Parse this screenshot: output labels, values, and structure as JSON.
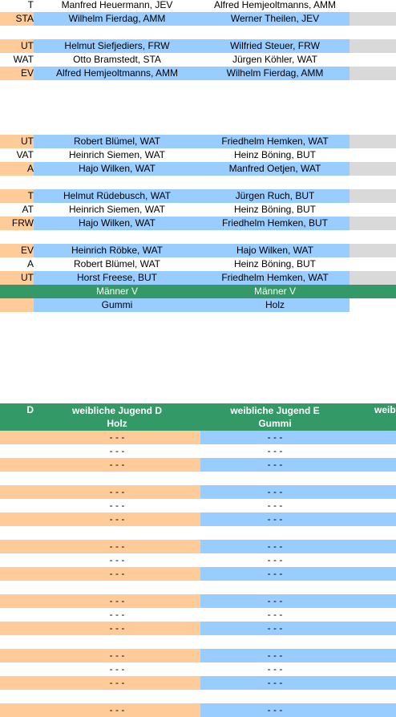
{
  "top_rows": [
    {
      "kind": "plain",
      "a": "T",
      "b": "Manfred Heuermann, JEV",
      "c": "Alfred Hemjeoltmanns, AMM"
    },
    {
      "kind": "shaded",
      "a": "STA",
      "b": "Wilhelm Fierdag, AMM",
      "c": "Werner Theilen, JEV"
    },
    null,
    {
      "kind": "shaded",
      "a": "UT",
      "b": "Helmut Siefjediers, FRW",
      "c": "Wilfried Steuer, FRW"
    },
    {
      "kind": "plain",
      "a": "WAT",
      "b": "Otto Bramstedt, STA",
      "c": "Jürgen Köhler, WAT"
    },
    {
      "kind": "shaded",
      "a": "EV",
      "b": "Alfred Hemjeoltmanns, AMM",
      "c": "Wilhelm Fierdag, AMM"
    },
    null,
    null,
    null,
    null,
    {
      "kind": "shaded",
      "a": "UT",
      "b": "Robert Blümel, WAT",
      "c": "Friedhelm Hemken, WAT"
    },
    {
      "kind": "plain",
      "a": "VAT",
      "b": "Heinrich Siemen, WAT",
      "c": "Heinz Böning, BUT"
    },
    {
      "kind": "shaded",
      "a": "A",
      "b": "Hajo Wilken, WAT",
      "c": "Manfred Oetjen, WAT"
    },
    null,
    {
      "kind": "shaded",
      "a": "T",
      "b": "Helmut Rüdebusch, WAT",
      "c": "Jürgen Ruch, BUT"
    },
    {
      "kind": "plain",
      "a": "AT",
      "b": "Heinrich Siemen, WAT",
      "c": "Heinz Böning, BUT"
    },
    {
      "kind": "shaded",
      "a": "FRW",
      "b": "Hajo Wilken, WAT",
      "c": "Friedhelm Hemken, BUT"
    },
    null,
    {
      "kind": "shaded",
      "a": "EV",
      "b": "Heinrich Röbke, WAT",
      "c": "Hajo Wilken, WAT"
    },
    {
      "kind": "plain",
      "a": "A",
      "b": "Robert Blümel, WAT",
      "c": "Heinz Böning, BUT"
    },
    {
      "kind": "shaded",
      "a": "UT",
      "b": "Horst Freese, BUT",
      "c": "Friedhelm Hemken, WAT"
    },
    {
      "kind": "header",
      "b": "Männer V",
      "c": "Männer V"
    },
    {
      "kind": "material",
      "b": "Gummi",
      "c": "Holz"
    }
  ],
  "bottom_header": {
    "a": "D",
    "b": [
      "weibliche Jugend D",
      "Holz"
    ],
    "c": [
      "weibliche Jugend E",
      "Gummi"
    ],
    "d": "weib"
  },
  "bottom_rows": [
    {
      "kind": "shaded",
      "b": "- - -",
      "c": "- - -"
    },
    {
      "kind": "plain",
      "b": "- - -",
      "c": "- - -"
    },
    {
      "kind": "shaded",
      "b": "- - -",
      "c": "- - -"
    },
    null,
    {
      "kind": "shaded",
      "b": "- - -",
      "c": "- - -"
    },
    {
      "kind": "plain",
      "b": "- - -",
      "c": "- - -"
    },
    {
      "kind": "shaded",
      "b": "- - -",
      "c": "- - -"
    },
    null,
    {
      "kind": "shaded",
      "b": "- - -",
      "c": "- - -"
    },
    {
      "kind": "plain",
      "b": "- - -",
      "c": "- - -"
    },
    {
      "kind": "shaded",
      "b": "- - -",
      "c": "- - -"
    },
    null,
    {
      "kind": "shaded",
      "b": "- - -",
      "c": "- - -"
    },
    {
      "kind": "plain",
      "b": "- - -",
      "c": "- - -"
    },
    {
      "kind": "shaded",
      "b": "- - -",
      "c": "- - -"
    },
    null,
    {
      "kind": "shaded",
      "b": "- - -",
      "c": "- - -"
    },
    {
      "kind": "plain",
      "b": "- - -",
      "c": "- - -"
    },
    {
      "kind": "shaded",
      "b": "- - -",
      "c": "- - -"
    },
    null,
    {
      "kind": "shaded",
      "b": "- - -",
      "c": "- - -"
    }
  ]
}
